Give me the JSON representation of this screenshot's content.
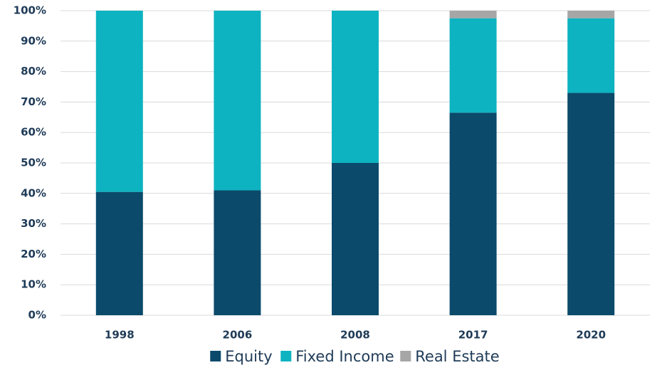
{
  "chart_data": {
    "type": "stacked_bar",
    "categories": [
      "1998",
      "2006",
      "2008",
      "2017",
      "2020"
    ],
    "series": [
      {
        "name": "Equity",
        "color": "#0b4a6b",
        "values": [
          40.5,
          41,
          50,
          66.5,
          73
        ]
      },
      {
        "name": "Fixed Income",
        "color": "#0db3c0",
        "values": [
          59.5,
          59,
          50,
          31,
          24.5
        ]
      },
      {
        "name": "Real Estate",
        "color": "#a6a6a6",
        "values": [
          0,
          0,
          0,
          2.5,
          2.5
        ]
      }
    ],
    "ylim": [
      0,
      100
    ],
    "yticks": [
      {
        "value": 0,
        "label": "0%"
      },
      {
        "value": 10,
        "label": "10%"
      },
      {
        "value": 20,
        "label": "20%"
      },
      {
        "value": 30,
        "label": "30%"
      },
      {
        "value": 40,
        "label": "40%"
      },
      {
        "value": 50,
        "label": "50%"
      },
      {
        "value": 60,
        "label": "60%"
      },
      {
        "value": 70,
        "label": "70%"
      },
      {
        "value": 80,
        "label": "80%"
      },
      {
        "value": 90,
        "label": "90%"
      },
      {
        "value": 100,
        "label": "100%"
      }
    ],
    "grid": true,
    "legend": "bottom"
  }
}
